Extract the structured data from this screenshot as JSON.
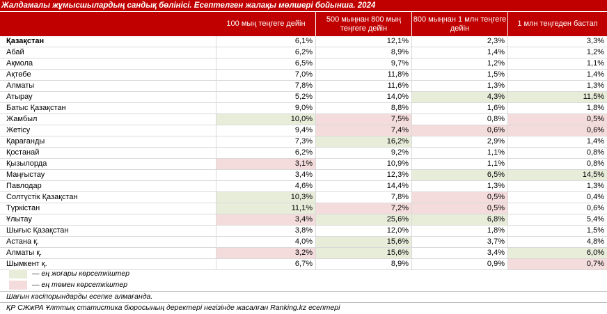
{
  "title": "Жалдамалы жұмысшылардың сандық бөлінісі. Есептелген жалақы мөлшері бойынша. 2024",
  "headers": [
    "100 мың теңгеге дейін",
    "500 мыңнан 800 мың теңгеге дейін",
    "800 мыңнан 1 млн теңгеге дейін",
    "1 млн теңгеден бастап"
  ],
  "rows": [
    {
      "name": "Қазақстан",
      "bold": true,
      "values": [
        "6,1%",
        "12,1%",
        "2,3%",
        "3,3%"
      ],
      "flags": [
        "",
        "",
        "",
        ""
      ]
    },
    {
      "name": "Абай",
      "values": [
        "6,2%",
        "8,9%",
        "1,4%",
        "1,2%"
      ],
      "flags": [
        "",
        "",
        "",
        ""
      ]
    },
    {
      "name": "Ақмола",
      "values": [
        "6,5%",
        "9,7%",
        "1,2%",
        "1,1%"
      ],
      "flags": [
        "",
        "",
        "",
        ""
      ]
    },
    {
      "name": "Ақтөбе",
      "values": [
        "7,0%",
        "11,8%",
        "1,5%",
        "1,4%"
      ],
      "flags": [
        "",
        "",
        "",
        ""
      ]
    },
    {
      "name": "Алматы",
      "values": [
        "7,8%",
        "11,6%",
        "1,3%",
        "1,3%"
      ],
      "flags": [
        "",
        "",
        "",
        ""
      ]
    },
    {
      "name": "Атырау",
      "values": [
        "5,2%",
        "14,0%",
        "4,3%",
        "11,5%"
      ],
      "flags": [
        "",
        "",
        "hi",
        "hi"
      ]
    },
    {
      "name": "Батыс Қазақстан",
      "values": [
        "9,0%",
        "8,8%",
        "1,6%",
        "1,8%"
      ],
      "flags": [
        "",
        "",
        "",
        ""
      ]
    },
    {
      "name": "Жамбыл",
      "values": [
        "10,0%",
        "7,5%",
        "0,8%",
        "0,5%"
      ],
      "flags": [
        "hi",
        "lo",
        "",
        "lo"
      ]
    },
    {
      "name": "Жетісу",
      "values": [
        "9,4%",
        "7,4%",
        "0,6%",
        "0,6%"
      ],
      "flags": [
        "",
        "lo",
        "lo",
        "lo"
      ]
    },
    {
      "name": "Қарағанды",
      "values": [
        "7,3%",
        "16,2%",
        "2,9%",
        "1,4%"
      ],
      "flags": [
        "",
        "hi",
        "",
        ""
      ]
    },
    {
      "name": "Қостанай",
      "values": [
        "6,2%",
        "9,2%",
        "1,1%",
        "0,8%"
      ],
      "flags": [
        "",
        "",
        "",
        ""
      ]
    },
    {
      "name": "Қызылорда",
      "values": [
        "3,1%",
        "10,9%",
        "1,1%",
        "0,8%"
      ],
      "flags": [
        "lo",
        "",
        "",
        ""
      ]
    },
    {
      "name": "Маңғыстау",
      "values": [
        "3,4%",
        "12,3%",
        "6,5%",
        "14,5%"
      ],
      "flags": [
        "",
        "",
        "hi",
        "hi"
      ]
    },
    {
      "name": "Павлодар",
      "values": [
        "4,6%",
        "14,4%",
        "1,3%",
        "1,3%"
      ],
      "flags": [
        "",
        "",
        "",
        ""
      ]
    },
    {
      "name": "Солтүстік Қазақстан",
      "values": [
        "10,3%",
        "7,8%",
        "0,5%",
        "0,4%"
      ],
      "flags": [
        "hi",
        "",
        "lo",
        ""
      ]
    },
    {
      "name": "Түркістан",
      "values": [
        "11,1%",
        "7,2%",
        "0,5%",
        "0,6%"
      ],
      "flags": [
        "hi",
        "lo",
        "lo",
        ""
      ]
    },
    {
      "name": "Ұлытау",
      "values": [
        "3,4%",
        "25,6%",
        "6,8%",
        "5,4%"
      ],
      "flags": [
        "lo",
        "hi",
        "hi",
        ""
      ]
    },
    {
      "name": "Шығыс Қазақстан",
      "values": [
        "3,8%",
        "12,0%",
        "1,8%",
        "1,5%"
      ],
      "flags": [
        "",
        "",
        "",
        ""
      ]
    },
    {
      "name": "Астана қ.",
      "values": [
        "4,0%",
        "15,6%",
        "3,7%",
        "4,8%"
      ],
      "flags": [
        "",
        "hi",
        "",
        ""
      ]
    },
    {
      "name": "Алматы қ.",
      "values": [
        "3,2%",
        "15,6%",
        "3,4%",
        "6,0%"
      ],
      "flags": [
        "lo",
        "hi",
        "",
        "hi"
      ]
    },
    {
      "name": "Шымкент қ.",
      "values": [
        "6,7%",
        "8,9%",
        "0,9%",
        "0,7%"
      ],
      "flags": [
        "",
        "",
        "",
        "lo"
      ]
    }
  ],
  "legend": {
    "high": "— ең жоғары көрсеткіштер",
    "low": "— ең төмен көрсеткіштер"
  },
  "note": "Шағын кәсіпорындарды есепке алмағанда.",
  "source": "ҚР СЖжРА Ұлттық статистика бюросының деректері негізінде жасалған Ranking.kz есептері",
  "colors": {
    "header": "#c00000",
    "high": "#e8edda",
    "low": "#f4dcdc"
  }
}
